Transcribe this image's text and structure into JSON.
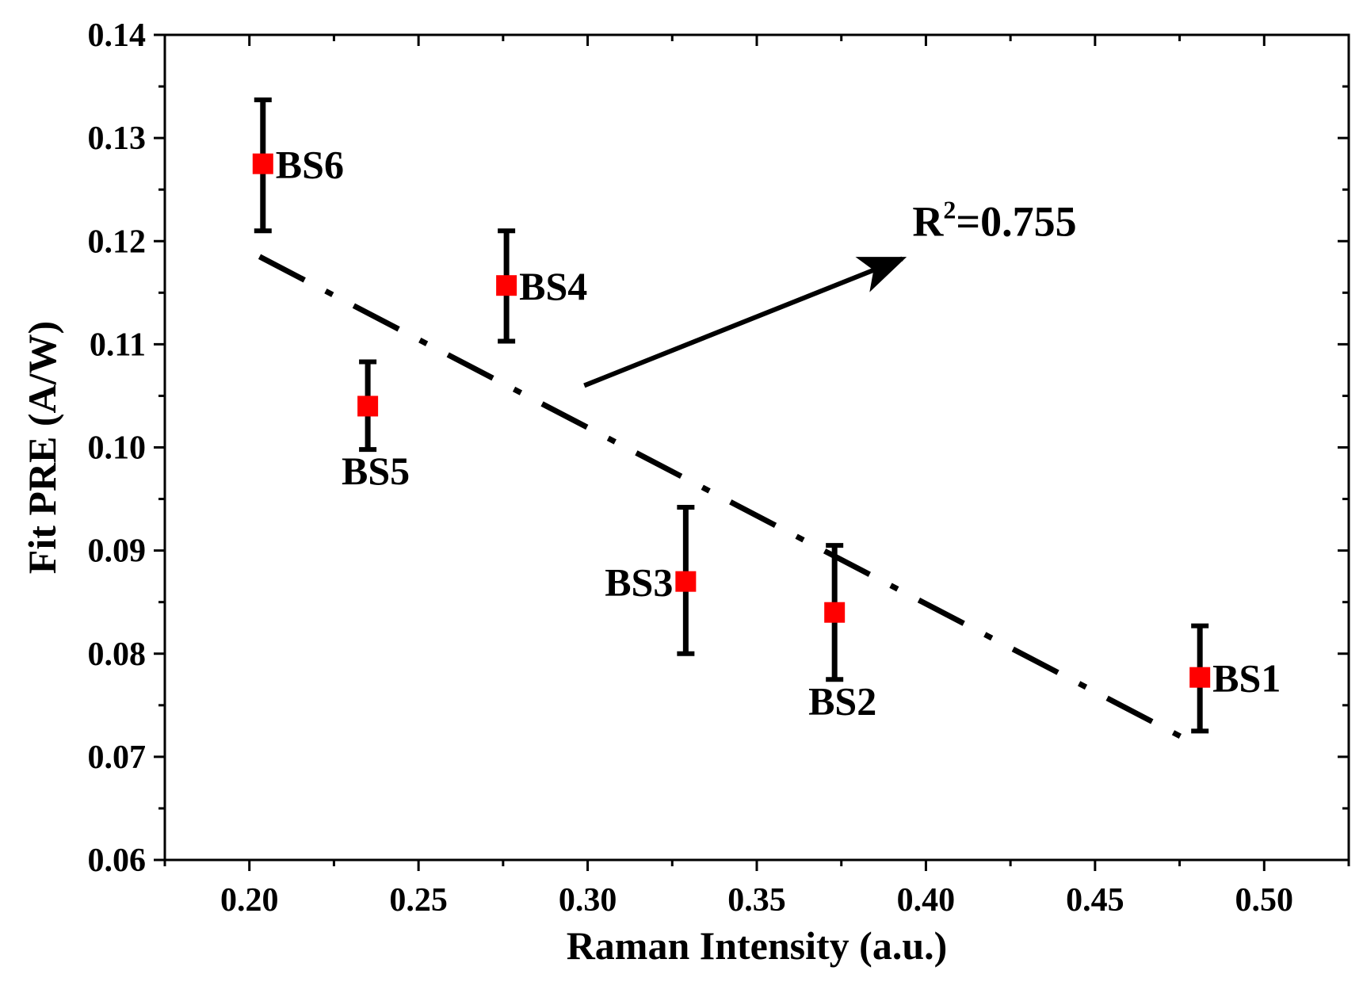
{
  "chart_data": {
    "type": "scatter",
    "title": "",
    "xlabel": "Raman Intensity (a.u.)",
    "ylabel": "Fit PRE (A/W)",
    "xlim": [
      0.175,
      0.525
    ],
    "ylim": [
      0.06,
      0.14
    ],
    "xticks": [
      0.2,
      0.25,
      0.3,
      0.35,
      0.4,
      0.45,
      0.5
    ],
    "xtick_labels": [
      "0.20",
      "0.25",
      "0.30",
      "0.35",
      "0.40",
      "0.45",
      "0.50"
    ],
    "yticks": [
      0.06,
      0.07,
      0.08,
      0.09,
      0.1,
      0.11,
      0.12,
      0.13,
      0.14
    ],
    "ytick_labels": [
      "0.06",
      "0.07",
      "0.08",
      "0.09",
      "0.10",
      "0.11",
      "0.12",
      "0.13",
      "0.14"
    ],
    "marker_color": "#ff0000",
    "error_bar_color": "#000000",
    "points": [
      {
        "label": "BS6",
        "x": 0.204,
        "y": 0.1275,
        "err_low": 0.121,
        "err_high": 0.1337,
        "label_pos": "right"
      },
      {
        "label": "BS5",
        "x": 0.235,
        "y": 0.104,
        "err_low": 0.0998,
        "err_high": 0.1083,
        "label_pos": "below"
      },
      {
        "label": "BS4",
        "x": 0.276,
        "y": 0.1157,
        "err_low": 0.1103,
        "err_high": 0.121,
        "label_pos": "right"
      },
      {
        "label": "BS3",
        "x": 0.329,
        "y": 0.087,
        "err_low": 0.08,
        "err_high": 0.0942,
        "label_pos": "left"
      },
      {
        "label": "BS2",
        "x": 0.373,
        "y": 0.084,
        "err_low": 0.0775,
        "err_high": 0.0905,
        "label_pos": "below"
      },
      {
        "label": "BS1",
        "x": 0.481,
        "y": 0.0777,
        "err_low": 0.0725,
        "err_high": 0.0827,
        "label_pos": "right"
      }
    ],
    "fit_line": {
      "style": "dash-dot",
      "x": [
        0.203,
        0.481
      ],
      "y": [
        0.1185,
        0.071
      ]
    },
    "annotation": {
      "text_main": "R",
      "text_sup": "2",
      "text_rest": "=0.755",
      "arrow_from": [
        0.299,
        0.106
      ],
      "arrow_to": [
        0.393,
        0.1183
      ],
      "text_at": [
        0.396,
        0.1205
      ]
    }
  }
}
